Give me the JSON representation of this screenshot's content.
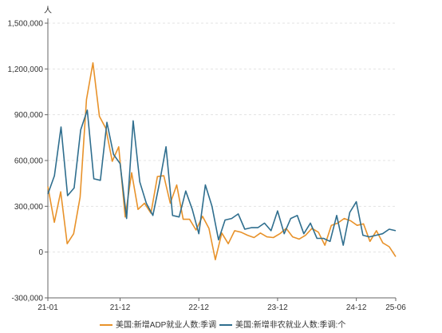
{
  "chart_data": {
    "type": "line",
    "y_unit": "人",
    "ylim": [
      -300000,
      1500000
    ],
    "y_ticks": [
      1500000,
      1200000,
      900000,
      600000,
      300000,
      0,
      -300000
    ],
    "y_tick_labels": [
      "1,500,000",
      "1,200,000",
      "900,000",
      "600,000",
      "300,000",
      "0",
      "-300,000"
    ],
    "x_ticks": [
      "21-01",
      "21-12",
      "22-12",
      "23-12",
      "24-12",
      "25-06"
    ],
    "grid": true,
    "legend_position": "bottom",
    "series": [
      {
        "name": "美国:新增ADP就业人数:季调",
        "color": "#E8922A",
        "values": [
          430000,
          195000,
          395000,
          55000,
          120000,
          360000,
          1000000,
          1240000,
          890000,
          810000,
          595000,
          690000,
          230000,
          520000,
          280000,
          320000,
          255000,
          495000,
          500000,
          320000,
          440000,
          215000,
          215000,
          145000,
          235000,
          155000,
          -50000,
          125000,
          55000,
          140000,
          130000,
          110000,
          95000,
          125000,
          100000,
          95000,
          120000,
          155000,
          100000,
          85000,
          110000,
          155000,
          130000,
          45000,
          175000,
          190000,
          220000,
          205000,
          175000,
          185000,
          70000,
          140000,
          60000,
          35000,
          -30000
        ]
      },
      {
        "name": "美国:新增非农就业人数:季调:个",
        "color": "#2F6E8E",
        "values": [
          380000,
          500000,
          820000,
          370000,
          420000,
          800000,
          930000,
          480000,
          470000,
          850000,
          640000,
          580000,
          220000,
          860000,
          460000,
          320000,
          240000,
          450000,
          690000,
          240000,
          230000,
          400000,
          280000,
          120000,
          440000,
          300000,
          80000,
          210000,
          220000,
          250000,
          150000,
          160000,
          160000,
          190000,
          140000,
          270000,
          120000,
          220000,
          240000,
          120000,
          190000,
          90000,
          90000,
          70000,
          240000,
          45000,
          260000,
          330000,
          110000,
          100000,
          110000,
          120000,
          150000,
          140000
        ]
      }
    ]
  }
}
